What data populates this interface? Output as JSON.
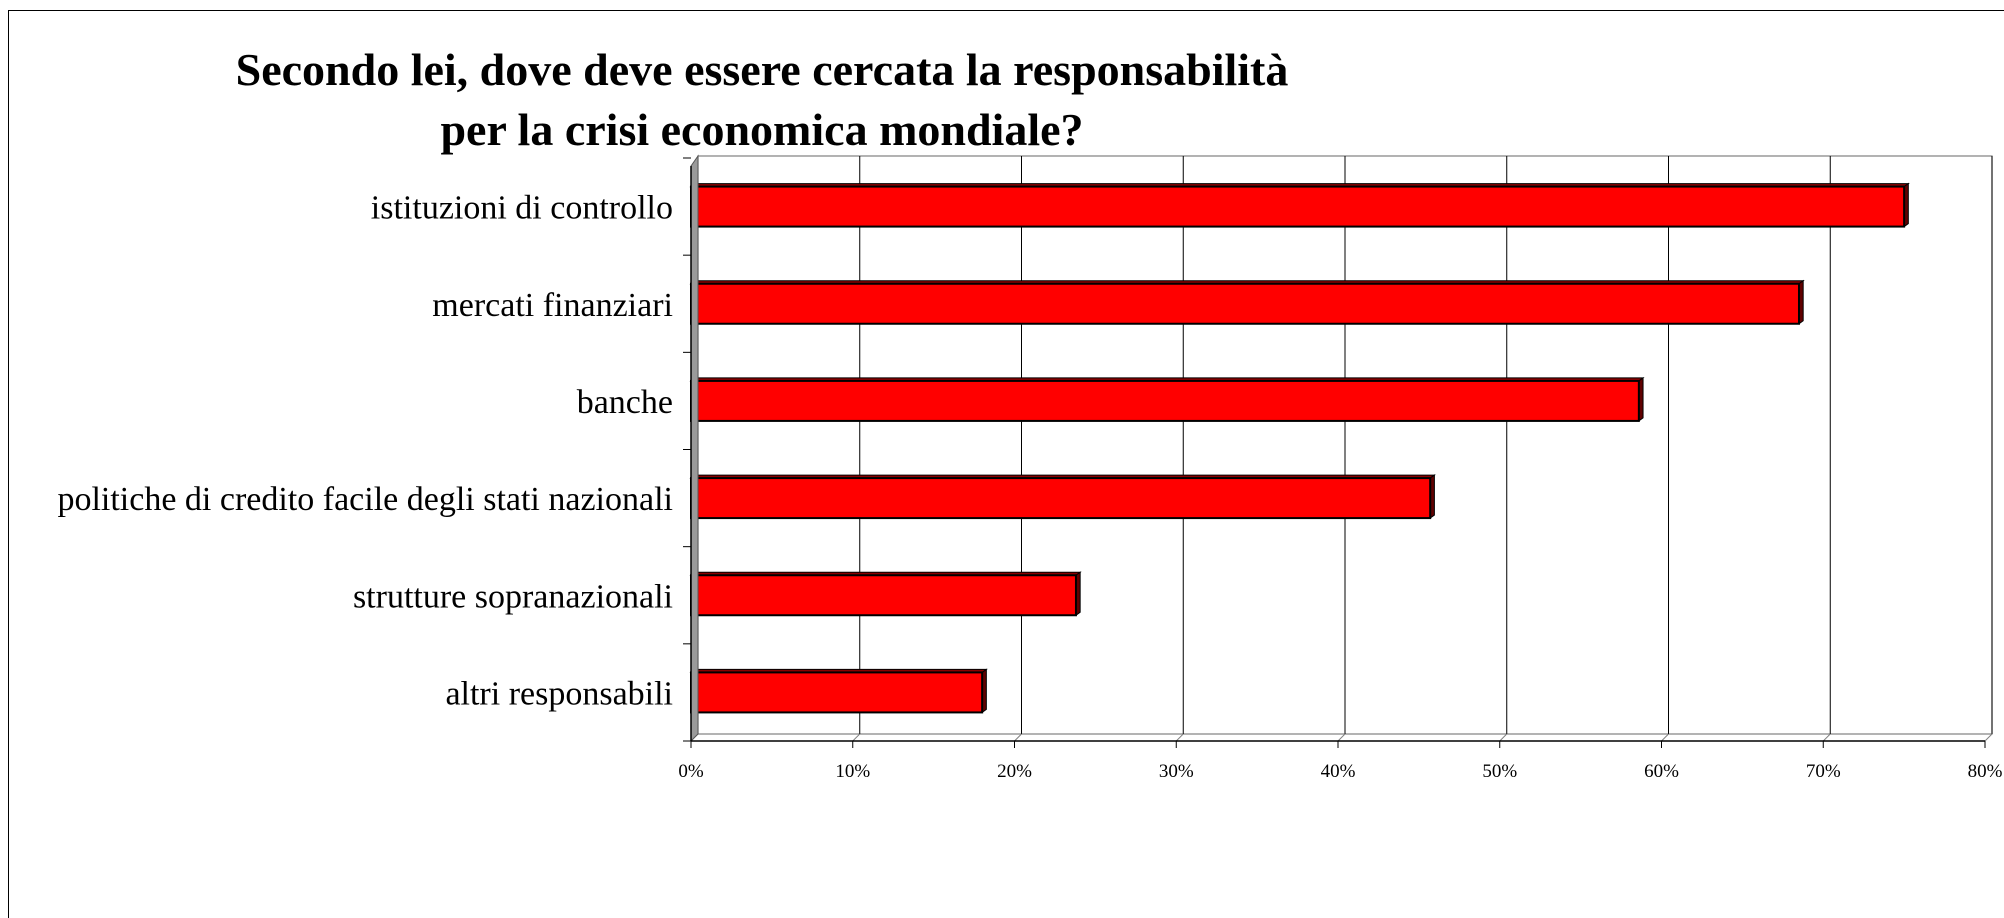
{
  "chart_data": {
    "type": "bar",
    "orientation": "horizontal",
    "title": "Secondo lei, dove deve essere cercata la responsabilità\nper la crisi economica mondiale?",
    "xlabel": "",
    "ylabel": "",
    "categories": [
      "istituzioni di controllo",
      "mercati finanziari",
      "banche",
      "politiche di credito facile degli stati nazionali",
      "strutture sopranazionali",
      "altri responsabili"
    ],
    "values": [
      75,
      68.5,
      58.6,
      45.7,
      23.8,
      18
    ],
    "xlim": [
      0,
      80
    ],
    "x_ticks": [
      "0%",
      "10%",
      "20%",
      "30%",
      "40%",
      "50%",
      "60%",
      "70%",
      "80%"
    ],
    "grid": true,
    "legend": "none",
    "colors": {
      "bar": "#ff0000",
      "bar_edge": "#000000",
      "grid": "#000000"
    }
  }
}
